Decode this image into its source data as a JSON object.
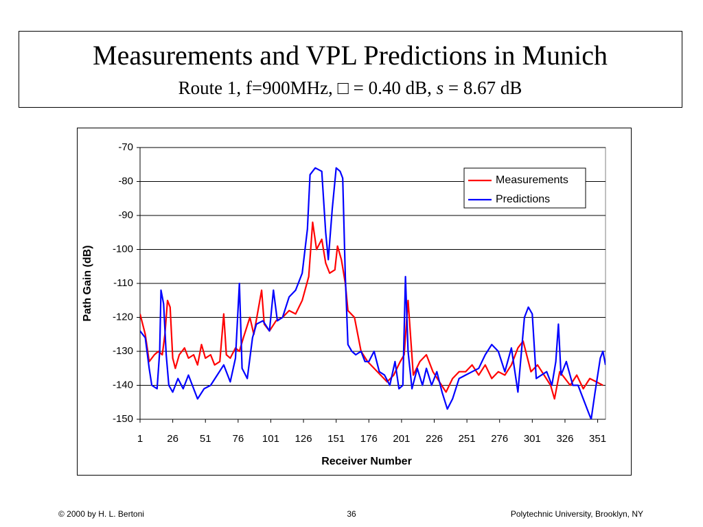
{
  "slide": {
    "title": "Measurements and VPL Predictions in Munich",
    "subtitle": [
      "Route 1, f=900MHz, ",
      "□",
      " = 0.40 dB, ",
      "s",
      " = 8.67 dB"
    ],
    "footer": {
      "left": "© 2000 by H. L. Bertoni",
      "center": "36",
      "right": "Polytechnic University, Brooklyn, NY"
    }
  },
  "chart_data": {
    "type": "line",
    "xlabel": "Receiver Number",
    "ylabel": "Path Gain (dB)",
    "xlim": [
      1,
      357
    ],
    "xticks": [
      1,
      26,
      51,
      76,
      101,
      126,
      151,
      176,
      201,
      226,
      251,
      276,
      301,
      326,
      351
    ],
    "ylim": [
      -150,
      -70
    ],
    "yticks": [
      -150,
      -140,
      -130,
      -120,
      -110,
      -100,
      -90,
      -80,
      -70
    ],
    "grid": true,
    "legend": "upper right",
    "series": [
      {
        "name": "Measurements",
        "color": "#ff0000",
        "x": [
          1,
          5,
          8,
          12,
          15,
          18,
          20,
          22,
          24,
          26,
          28,
          31,
          35,
          38,
          42,
          45,
          48,
          51,
          55,
          58,
          62,
          65,
          67,
          70,
          74,
          77,
          80,
          85,
          88,
          94,
          96,
          100,
          105,
          110,
          115,
          120,
          125,
          130,
          133,
          136,
          140,
          143,
          146,
          150,
          152,
          155,
          158,
          160,
          165,
          170,
          175,
          180,
          185,
          190,
          195,
          200,
          203,
          206,
          210,
          215,
          220,
          225,
          230,
          235,
          240,
          245,
          250,
          255,
          260,
          265,
          270,
          275,
          280,
          285,
          290,
          294,
          300,
          305,
          310,
          315,
          318,
          322,
          326,
          330,
          335,
          340,
          345,
          350,
          355
        ],
        "values": [
          -119,
          -125,
          -133,
          -131,
          -130,
          -131,
          -125,
          -115,
          -117,
          -132,
          -135,
          -131,
          -129,
          -132,
          -131,
          -134,
          -128,
          -132,
          -131,
          -134,
          -133,
          -119,
          -131,
          -132,
          -129,
          -130,
          -126,
          -120,
          -125,
          -112,
          -122,
          -124,
          -121,
          -120,
          -118,
          -119,
          -115,
          -108,
          -92,
          -100,
          -97,
          -104,
          -107,
          -106,
          -99,
          -103,
          -110,
          -118,
          -120,
          -130,
          -133,
          -135,
          -137,
          -139,
          -137,
          -133,
          -131,
          -115,
          -137,
          -133,
          -131,
          -136,
          -139,
          -142,
          -138,
          -136,
          -136,
          -134,
          -137,
          -134,
          -138,
          -136,
          -137,
          -134,
          -129,
          -127,
          -136,
          -134,
          -137,
          -140,
          -144,
          -136,
          -138,
          -140,
          -137,
          -141,
          -138,
          -139,
          -140
        ]
      },
      {
        "name": "Predictions",
        "color": "#0000ff",
        "x": [
          1,
          5,
          8,
          10,
          14,
          16,
          17,
          19,
          21,
          23,
          26,
          30,
          34,
          38,
          42,
          45,
          50,
          55,
          60,
          65,
          70,
          74,
          77,
          79,
          83,
          87,
          90,
          95,
          100,
          103,
          106,
          110,
          115,
          120,
          125,
          129,
          131,
          135,
          140,
          143,
          145,
          148,
          151,
          154,
          156,
          158,
          160,
          163,
          166,
          170,
          173,
          176,
          180,
          184,
          188,
          192,
          196,
          199,
          202,
          204,
          206,
          209,
          213,
          217,
          220,
          224,
          228,
          232,
          236,
          240,
          245,
          250,
          255,
          260,
          265,
          270,
          275,
          280,
          285,
          290,
          295,
          298,
          301,
          304,
          308,
          312,
          316,
          319,
          321,
          323,
          327,
          332,
          336,
          340,
          344,
          346,
          349,
          353,
          355,
          357
        ],
        "values": [
          -124,
          -126,
          -135,
          -140,
          -141,
          -130,
          -112,
          -116,
          -131,
          -140,
          -142,
          -138,
          -141,
          -137,
          -141,
          -144,
          -141,
          -140,
          -137,
          -134,
          -139,
          -132,
          -110,
          -135,
          -138,
          -126,
          -122,
          -121,
          -124,
          -112,
          -121,
          -120,
          -114,
          -112,
          -107,
          -94,
          -78,
          -76,
          -77,
          -95,
          -103,
          -88,
          -76,
          -77,
          -79,
          -108,
          -128,
          -130,
          -131,
          -130,
          -133,
          -133,
          -130,
          -136,
          -137,
          -140,
          -133,
          -141,
          -140,
          -108,
          -130,
          -141,
          -135,
          -140,
          -135,
          -140,
          -136,
          -142,
          -147,
          -144,
          -138,
          -137,
          -136,
          -135,
          -131,
          -128,
          -130,
          -136,
          -129,
          -142,
          -120,
          -117,
          -119,
          -138,
          -137,
          -136,
          -140,
          -133,
          -122,
          -137,
          -133,
          -140,
          -140,
          -144,
          -148,
          -150,
          -142,
          -132,
          -130,
          -134
        ]
      }
    ]
  }
}
